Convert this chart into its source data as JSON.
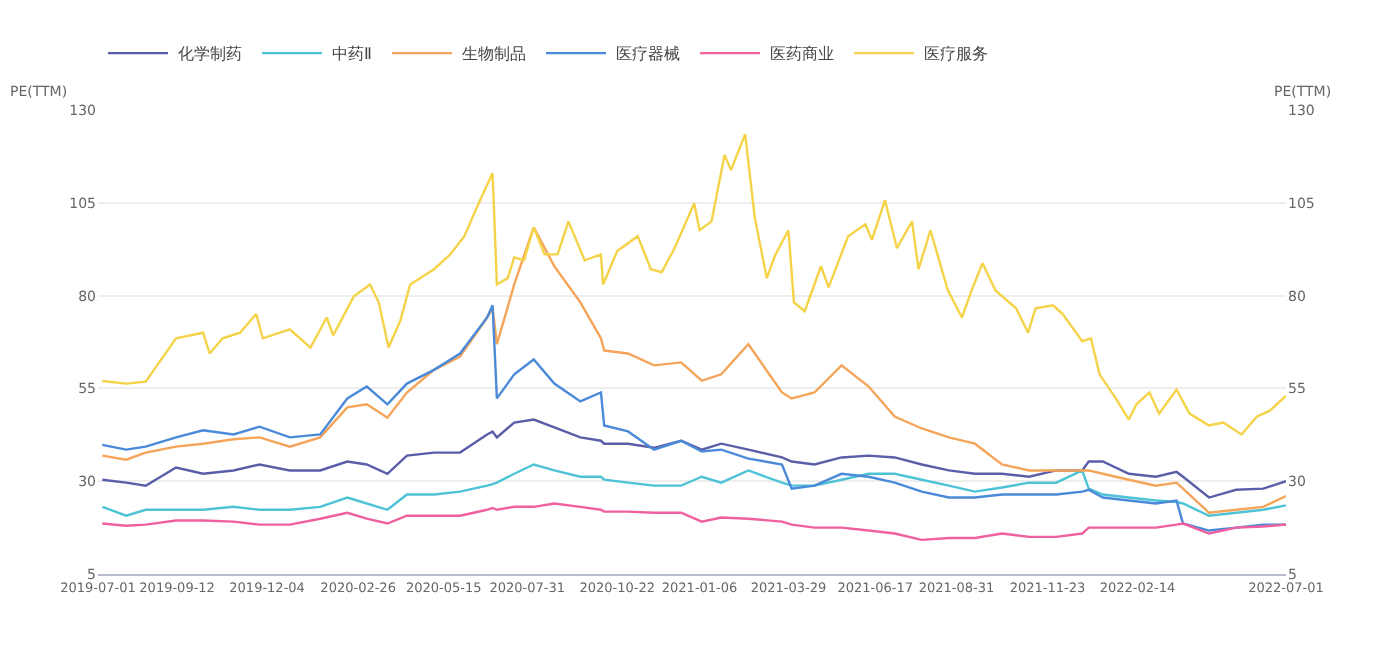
{
  "chart_data": {
    "type": "line",
    "ylabel": "PE(TTM)",
    "y2label": "PE(TTM)",
    "x": [
      "2019-07-05",
      "2019-07-27",
      "2019-08-14",
      "2019-09-11",
      "2019-10-06",
      "2019-11-03",
      "2019-11-27",
      "2019-12-25",
      "2020-01-22",
      "2020-02-16",
      "2020-03-05",
      "2020-03-24",
      "2020-04-11",
      "2020-05-06",
      "2020-05-30",
      "2020-06-24",
      "2020-06-29",
      "2020-07-03",
      "2020-07-19",
      "2020-08-06",
      "2020-08-25",
      "2020-09-18",
      "2020-10-07",
      "2020-10-10",
      "2020-11-01",
      "2020-11-25",
      "2020-12-20",
      "2021-01-08",
      "2021-01-26",
      "2021-02-20",
      "2021-03-23",
      "2021-04-01",
      "2021-04-22",
      "2021-05-17",
      "2021-06-11",
      "2021-07-05",
      "2021-07-30",
      "2021-08-24",
      "2021-09-17",
      "2021-10-12",
      "2021-11-06",
      "2021-12-01",
      "2021-12-25",
      "2021-12-31",
      "2022-01-13",
      "2022-02-06",
      "2022-03-03",
      "2022-03-22",
      "2022-03-28",
      "2022-04-21",
      "2022-05-16",
      "2022-06-10",
      "2022-07-01"
    ],
    "series": [
      {
        "name": "化学制药",
        "color": "#5a5ea8",
        "values": [
          30.4,
          29.6,
          28.8,
          33.7,
          32,
          32.9,
          34.5,
          32.9,
          32.9,
          35.3,
          34.5,
          32,
          36.9,
          37.7,
          37.7,
          42.6,
          43.4,
          41.8,
          45.8,
          46.6,
          44.5,
          41.8,
          40.9,
          40.1,
          40.1,
          39,
          40.9,
          38.5,
          40.1,
          38.5,
          36.4,
          35.3,
          34.5,
          36.4,
          36.9,
          36.4,
          34.5,
          32.9,
          32,
          32,
          31.2,
          32.9,
          32.9,
          35.3,
          35.3,
          32,
          31.2,
          32.5,
          31.2,
          25.6,
          27.7,
          28,
          30
        ]
      },
      {
        "name": "中药Ⅱ",
        "color": "#4ec3d6",
        "values": [
          23.1,
          20.7,
          22.3,
          22.3,
          22.3,
          23.1,
          22.3,
          22.3,
          23.1,
          25.6,
          24,
          22.3,
          26.4,
          26.4,
          27.2,
          28.8,
          29.2,
          29.6,
          32,
          34.5,
          32.9,
          31.2,
          31.2,
          30.4,
          29.6,
          28.8,
          28.8,
          31.2,
          29.6,
          32.9,
          29.6,
          28.8,
          28.8,
          30.4,
          32,
          32,
          30.4,
          28.8,
          27.2,
          28.3,
          29.6,
          29.6,
          32.9,
          28,
          26.4,
          25.6,
          24.8,
          24.4,
          24,
          20.7,
          21.5,
          22.3,
          23.5
        ]
      },
      {
        "name": "生物制品",
        "color": "#f5a55a",
        "values": [
          36.9,
          35.8,
          37.7,
          39.3,
          40.1,
          41.3,
          41.8,
          39.3,
          41.8,
          49.9,
          50.7,
          47.1,
          53.9,
          60,
          63.6,
          74.1,
          76.6,
          66.9,
          83,
          98.4,
          87.9,
          78.2,
          68.5,
          65.2,
          64.4,
          61.2,
          62,
          57.1,
          58.8,
          66.9,
          53.9,
          52.3,
          53.9,
          61.2,
          55.5,
          47.4,
          44.2,
          41.8,
          40.1,
          34.5,
          32.9,
          32.9,
          32.9,
          32.9,
          32,
          30.4,
          28.8,
          29.6,
          28,
          21.5,
          22.3,
          23.1,
          26
        ]
      },
      {
        "name": "医疗器械",
        "color": "#4a8ad8",
        "values": [
          39.8,
          38.5,
          39.3,
          41.8,
          43.7,
          42.6,
          44.7,
          41.8,
          42.6,
          52.3,
          55.5,
          50.7,
          56.3,
          60,
          64.4,
          74.1,
          77.4,
          52.3,
          58.8,
          62.8,
          56.3,
          51.5,
          53.9,
          45,
          43.4,
          38.5,
          40.9,
          38,
          38.5,
          36.1,
          34.5,
          28,
          28.8,
          32,
          31.2,
          29.6,
          27.2,
          25.6,
          25.6,
          26.4,
          26.4,
          26.4,
          27.2,
          27.7,
          25.6,
          24.8,
          24,
          24.8,
          18.6,
          16.7,
          17.5,
          18.3,
          18.3
        ]
      },
      {
        "name": "医药商业",
        "color": "#f0609e",
        "values": [
          18.6,
          18,
          18.3,
          19.4,
          19.4,
          19.1,
          18.3,
          18.3,
          19.9,
          21.5,
          19.9,
          18.6,
          20.7,
          20.7,
          20.7,
          22.3,
          22.8,
          22.3,
          23.1,
          23.1,
          24,
          23.1,
          22.3,
          21.8,
          21.8,
          21.5,
          21.5,
          19.1,
          20.2,
          19.9,
          19.1,
          18.3,
          17.5,
          17.5,
          16.7,
          15.9,
          14.2,
          14.7,
          14.7,
          15.9,
          15,
          15,
          15.9,
          17.5,
          17.5,
          17.5,
          17.5,
          18.3,
          18.6,
          15.9,
          17.5,
          17.8,
          18.3
        ]
      },
      {
        "name": "医疗服务",
        "color": "#f5d349",
        "x": [
          "2019-07-05",
          "2019-07-27",
          "2019-08-14",
          "2019-09-11",
          "2019-10-06",
          "2019-10-12",
          "2019-10-24",
          "2019-11-09",
          "2019-11-24",
          "2019-11-30",
          "2019-12-25",
          "2020-01-13",
          "2020-01-28",
          "2020-02-03",
          "2020-02-22",
          "2020-03-08",
          "2020-03-16",
          "2020-03-25",
          "2020-04-05",
          "2020-04-14",
          "2020-05-06",
          "2020-05-21",
          "2020-06-03",
          "2020-06-15",
          "2020-06-29",
          "2020-07-03",
          "2020-07-13",
          "2020-07-19",
          "2020-07-28",
          "2020-08-06",
          "2020-08-16",
          "2020-08-28",
          "2020-09-07",
          "2020-09-22",
          "2020-10-07",
          "2020-10-09",
          "2020-10-22",
          "2020-11-10",
          "2020-11-22",
          "2020-12-02",
          "2020-12-14",
          "2021-01-01",
          "2021-01-06",
          "2021-01-17",
          "2021-01-29",
          "2021-02-04",
          "2021-02-17",
          "2021-02-26",
          "2021-03-09",
          "2021-03-17",
          "2021-03-29",
          "2021-04-03",
          "2021-04-13",
          "2021-04-28",
          "2021-05-05",
          "2021-05-23",
          "2021-06-08",
          "2021-06-14",
          "2021-06-26",
          "2021-07-07",
          "2021-07-21",
          "2021-07-27",
          "2021-08-07",
          "2021-08-23",
          "2021-09-05",
          "2021-09-14",
          "2021-09-24",
          "2021-10-06",
          "2021-10-25",
          "2021-11-05",
          "2021-11-12",
          "2021-11-28",
          "2021-12-07",
          "2021-12-25",
          "2022-01-02",
          "2022-01-10",
          "2022-01-25",
          "2022-02-06",
          "2022-02-13",
          "2022-02-25",
          "2022-03-06",
          "2022-03-22",
          "2022-04-03",
          "2022-04-21",
          "2022-05-04",
          "2022-05-21",
          "2022-06-04",
          "2022-06-16",
          "2022-07-01"
        ],
        "values": [
          57,
          56.3,
          56.8,
          68.5,
          70,
          64.4,
          68.5,
          70,
          75,
          68.5,
          70.9,
          66,
          74.1,
          69.3,
          79.8,
          83,
          78.2,
          66,
          73.3,
          83,
          87.1,
          91.1,
          96,
          104.1,
          113,
          83,
          84.7,
          90.3,
          89.5,
          98.4,
          91.1,
          91.1,
          100,
          89.5,
          91.1,
          83,
          92,
          96,
          87.1,
          86.3,
          92.8,
          104.9,
          97.6,
          100,
          117.9,
          113.8,
          123.5,
          100.9,
          84.7,
          91.1,
          97.6,
          78.2,
          75.8,
          87.9,
          82.2,
          96,
          99.2,
          95,
          105.7,
          92.8,
          100,
          87.1,
          97.6,
          81.4,
          74.1,
          81.4,
          88.7,
          81.4,
          76.6,
          70,
          76.6,
          77.4,
          75,
          67.7,
          68.5,
          58.8,
          52.3,
          46.6,
          50.7,
          53.9,
          48.2,
          54.7,
          48.2,
          45,
          45.8,
          42.6,
          47.4,
          49,
          53
        ]
      }
    ],
    "xlim": [
      "2019-07-01",
      "2022-07-01"
    ],
    "xticks": [
      "2019-07-01",
      "2019-09-12",
      "2019-12-04",
      "2020-02-26",
      "2020-05-15",
      "2020-07-31",
      "2020-10-22",
      "2021-01-06",
      "2021-03-29",
      "2021-06-17",
      "2021-08-31",
      "2021-11-23",
      "2022-02-14",
      "2022-07-01"
    ],
    "ylim": [
      5,
      130
    ],
    "yticks": [
      5,
      30,
      55,
      80,
      105,
      130
    ],
    "y2lim": [
      5,
      130
    ],
    "y2ticks": [
      5,
      30,
      55,
      80,
      105,
      130
    ],
    "grid": "y",
    "legend": "top left",
    "marker": "none",
    "line_style": "solid"
  }
}
